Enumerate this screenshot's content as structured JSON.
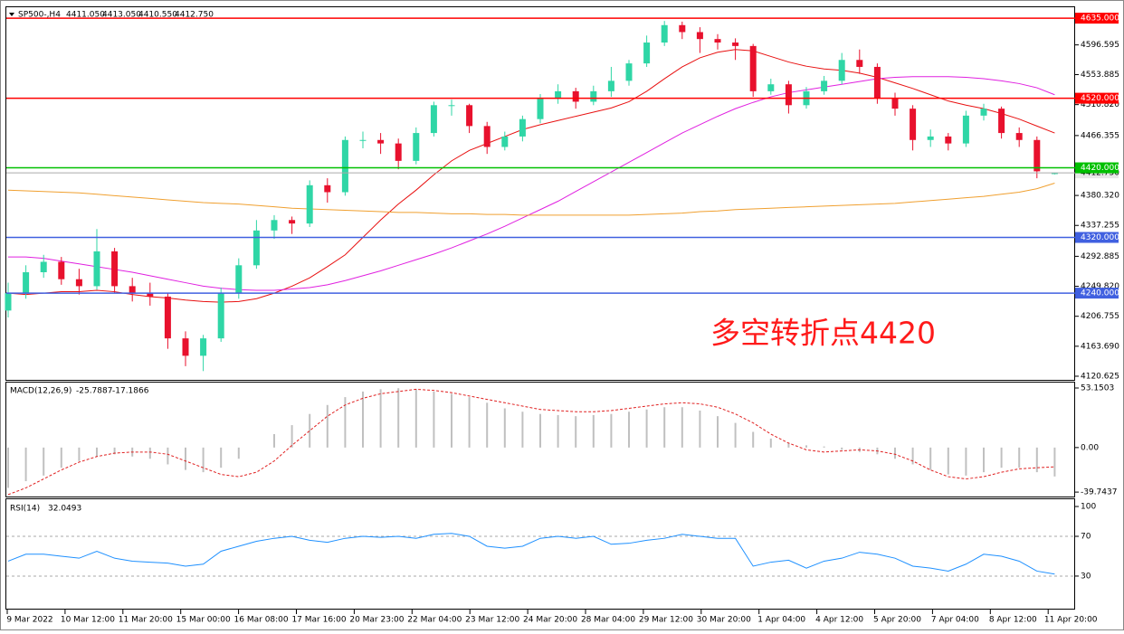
{
  "chart_data": {
    "type": "candlestick",
    "header": {
      "symbol": "SP500-,H4",
      "values": [
        "4411.050",
        "4413.050",
        "4410.550",
        "4412.750"
      ]
    },
    "annotation": "多空转折点4420",
    "ylim": [
      4115.4,
      4650.7
    ],
    "yticks": [
      4596.595,
      4553.885,
      {
        "value": 4510.82,
        "label": "4510.820"
      },
      4466.355,
      {
        "value": 4380.32,
        "label": "4380.320"
      },
      4337.255,
      4292.885,
      {
        "value": 4249.82,
        "label": "4249.820"
      },
      4206.755,
      {
        "value": 4163.69,
        "label": "4163.690"
      },
      4120.625
    ],
    "levels": [
      {
        "value": 4635,
        "label": "4635.000",
        "color": "#ff0000"
      },
      {
        "value": 4520,
        "label": "4520.000",
        "color": "#ff0000"
      },
      {
        "value": 4420,
        "label": "4420.000",
        "color": "#00c000"
      },
      {
        "value": 4320,
        "label": "4320.000",
        "color": "#4060e0"
      },
      {
        "value": 4240,
        "label": "4240.000",
        "color": "#4060e0"
      }
    ],
    "up_color": "#2fd6a6",
    "down_color": "#e8112d",
    "candles": [
      [
        4215,
        4255,
        4205,
        4240
      ],
      [
        4240,
        4280,
        4232,
        4270
      ],
      [
        4270,
        4295,
        4262,
        4285
      ],
      [
        4285,
        4292,
        4252,
        4260
      ],
      [
        4260,
        4275,
        4238,
        4250
      ],
      [
        4250,
        4332,
        4245,
        4300
      ],
      [
        4300,
        4305,
        4240,
        4250
      ],
      [
        4250,
        4262,
        4228,
        4240
      ],
      [
        4240,
        4255,
        4222,
        4235
      ],
      [
        4235,
        4240,
        4160,
        4175
      ],
      [
        4175,
        4185,
        4135,
        4150
      ],
      [
        4150,
        4180,
        4128,
        4175
      ],
      [
        4175,
        4248,
        4170,
        4240
      ],
      [
        4240,
        4290,
        4232,
        4280
      ],
      [
        4280,
        4345,
        4275,
        4330
      ],
      [
        4330,
        4352,
        4318,
        4345
      ],
      [
        4345,
        4350,
        4325,
        4340
      ],
      [
        4340,
        4402,
        4335,
        4395
      ],
      [
        4395,
        4405,
        4370,
        4385
      ],
      [
        4385,
        4465,
        4380,
        4460
      ],
      [
        4460,
        4472,
        4448,
        4460
      ],
      [
        4460,
        4470,
        4440,
        4455
      ],
      [
        4455,
        4462,
        4418,
        4430
      ],
      [
        4430,
        4478,
        4425,
        4470
      ],
      [
        4470,
        4515,
        4465,
        4510
      ],
      [
        4510,
        4518,
        4495,
        4510
      ],
      [
        4510,
        4512,
        4470,
        4480
      ],
      [
        4480,
        4486,
        4440,
        4450
      ],
      [
        4450,
        4472,
        4445,
        4465
      ],
      [
        4465,
        4495,
        4458,
        4490
      ],
      [
        4490,
        4526,
        4484,
        4520
      ],
      [
        4520,
        4540,
        4512,
        4530
      ],
      [
        4530,
        4535,
        4505,
        4515
      ],
      [
        4515,
        4538,
        4510,
        4530
      ],
      [
        4530,
        4565,
        4522,
        4545
      ],
      [
        4545,
        4575,
        4538,
        4570
      ],
      [
        4570,
        4610,
        4565,
        4600
      ],
      [
        4600,
        4631,
        4595,
        4625
      ],
      [
        4625,
        4630,
        4605,
        4615
      ],
      [
        4615,
        4622,
        4585,
        4605
      ],
      [
        4605,
        4612,
        4590,
        4600
      ],
      [
        4600,
        4606,
        4575,
        4595
      ],
      [
        4595,
        4598,
        4522,
        4530
      ],
      [
        4530,
        4548,
        4525,
        4540
      ],
      [
        4540,
        4545,
        4498,
        4510
      ],
      [
        4510,
        4536,
        4505,
        4530
      ],
      [
        4530,
        4552,
        4525,
        4545
      ],
      [
        4545,
        4585,
        4540,
        4575
      ],
      [
        4575,
        4590,
        4555,
        4565
      ],
      [
        4565,
        4570,
        4512,
        4520
      ],
      [
        4520,
        4528,
        4495,
        4505
      ],
      [
        4505,
        4510,
        4445,
        4460
      ],
      [
        4460,
        4475,
        4450,
        4465
      ],
      [
        4465,
        4470,
        4445,
        4455
      ],
      [
        4455,
        4502,
        4450,
        4495
      ],
      [
        4495,
        4512,
        4488,
        4505
      ],
      [
        4505,
        4508,
        4462,
        4470
      ],
      [
        4470,
        4478,
        4450,
        4460
      ],
      [
        4460,
        4465,
        4405,
        4415
      ],
      [
        4411.05,
        4413.05,
        4410.55,
        4412.75
      ]
    ],
    "series": [
      {
        "color": "#e81010",
        "values": [
          4240,
          4238,
          4240,
          4242,
          4242,
          4244,
          4242,
          4238,
          4235,
          4233,
          4230,
          4228,
          4227,
          4228,
          4232,
          4240,
          4250,
          4262,
          4278,
          4295,
          4320,
          4345,
          4368,
          4388,
          4410,
          4430,
          4445,
          4455,
          4465,
          4475,
          4482,
          4488,
          4494,
          4500,
          4506,
          4515,
          4530,
          4548,
          4565,
          4578,
          4586,
          4590,
          4588,
          4580,
          4572,
          4566,
          4562,
          4560,
          4556,
          4550,
          4542,
          4534,
          4525,
          4516,
          4510,
          4505,
          4498,
          4490,
          4480,
          4470
        ]
      },
      {
        "color": "#e020e0",
        "values": [
          4292,
          4292,
          4290,
          4286,
          4282,
          4278,
          4274,
          4270,
          4265,
          4260,
          4255,
          4250,
          4247,
          4245,
          4244,
          4244,
          4246,
          4248,
          4252,
          4258,
          4265,
          4272,
          4280,
          4288,
          4296,
          4305,
          4315,
          4325,
          4336,
          4348,
          4360,
          4372,
          4386,
          4400,
          4414,
          4428,
          4442,
          4456,
          4470,
          4482,
          4494,
          4505,
          4514,
          4522,
          4528,
          4532,
          4536,
          4540,
          4544,
          4548,
          4550,
          4551,
          4551,
          4551,
          4550,
          4548,
          4545,
          4541,
          4535,
          4525
        ]
      },
      {
        "color": "#f0a030",
        "values": [
          4388,
          4387,
          4386,
          4385,
          4384,
          4382,
          4380,
          4378,
          4376,
          4374,
          4372,
          4370,
          4369,
          4368,
          4366,
          4364,
          4362,
          4361,
          4360,
          4359,
          4358,
          4357,
          4356,
          4356,
          4355,
          4354,
          4354,
          4353,
          4353,
          4352,
          4352,
          4352,
          4352,
          4352,
          4352,
          4352,
          4353,
          4354,
          4355,
          4357,
          4358,
          4360,
          4361,
          4362,
          4363,
          4364,
          4365,
          4366,
          4367,
          4368,
          4369,
          4371,
          4373,
          4375,
          4377,
          4379,
          4382,
          4385,
          4390,
          4398
        ]
      }
    ],
    "xlabels": [
      "9 Mar 2022",
      "10 Mar 12:00",
      "11 Mar 20:00",
      "15 Mar 00:00",
      "16 Mar 08:00",
      "17 Mar 16:00",
      "20 Mar 23:00",
      "22 Mar 04:00",
      "23 Mar 12:00",
      "24 Mar 20:00",
      "28 Mar 04:00",
      "29 Mar 12:00",
      "30 Mar 20:00",
      "1 Apr 04:00",
      "4 Apr 12:00",
      "5 Apr 20:00",
      "7 Apr 04:00",
      "8 Apr 12:00",
      "11 Apr 20:00"
    ],
    "macd": {
      "name": "MACD(12,26,9)",
      "ylim": [
        -43.7,
        58
      ],
      "yticks": [
        53.1503,
        {
          "value": 0,
          "label": "0.00"
        },
        -39.7437
      ],
      "hist_color": "#c0c0c0",
      "signal_color": "#e02020",
      "hist": [
        -36,
        -30,
        -25,
        -18,
        -12,
        -8,
        -6,
        -8,
        -10,
        -15,
        -20,
        -22,
        -18,
        -10,
        0,
        12,
        20,
        30,
        38,
        45,
        50,
        52,
        53,
        52,
        50,
        48,
        45,
        40,
        35,
        32,
        30,
        29,
        28,
        29,
        30,
        32,
        34,
        36,
        36,
        33,
        28,
        22,
        14,
        8,
        4,
        2,
        1,
        -2,
        -4,
        -6,
        -10,
        -15,
        -20,
        -24,
        -25,
        -22,
        -18,
        -18,
        -22,
        -25.7887
      ],
      "signal": [
        -42,
        -36,
        -28,
        -20,
        -13,
        -8,
        -5,
        -4,
        -4,
        -6,
        -12,
        -18,
        -24,
        -26,
        -22,
        -12,
        2,
        15,
        28,
        38,
        44,
        48,
        50,
        52,
        51,
        49,
        46,
        43,
        40,
        37,
        34,
        33,
        32,
        32,
        33,
        35,
        37,
        39,
        40,
        39,
        36,
        30,
        22,
        12,
        4,
        -2,
        -4,
        -3,
        -2,
        -3,
        -6,
        -12,
        -20,
        -26,
        -28,
        -26,
        -22,
        -19,
        -18,
        -17.1866
      ]
    },
    "rsi": {
      "name": "RSI(14)",
      "ylim": [
        -2.8,
        107.3
      ],
      "yticks": [
        100,
        70,
        30
      ],
      "color": "#1e90ff",
      "values": [
        45,
        52,
        52,
        50,
        48,
        55,
        48,
        45,
        44,
        43,
        40,
        42,
        55,
        60,
        65,
        68,
        70,
        66,
        64,
        68,
        70,
        69,
        70,
        68,
        72,
        73,
        70,
        60,
        58,
        60,
        68,
        70,
        68,
        70,
        62,
        63,
        66,
        68,
        72,
        70,
        68,
        68,
        40,
        44,
        46,
        38,
        45,
        48,
        54,
        52,
        48,
        40,
        38,
        35,
        42,
        52,
        50,
        45,
        35,
        32.0493
      ]
    }
  }
}
